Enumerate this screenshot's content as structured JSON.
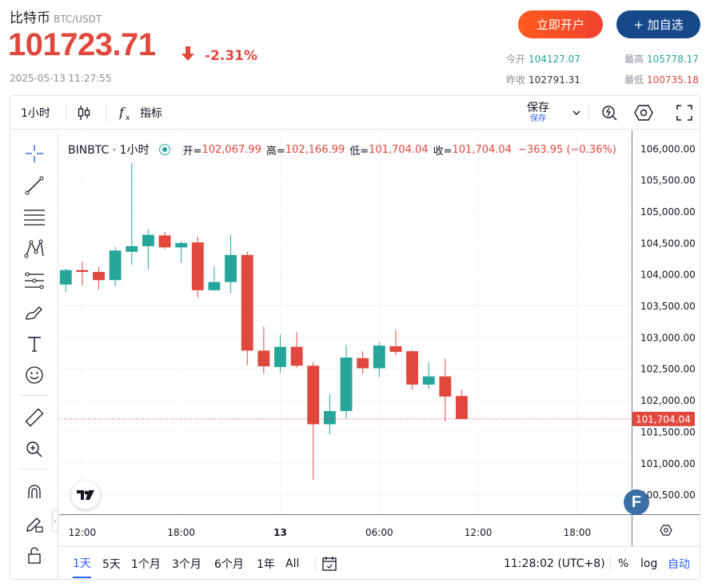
{
  "header": {
    "name": "比特币",
    "pair": "BTC/USDT",
    "price": "101723.71",
    "change": "-2.31%",
    "timestamp": "2025-05-13 11:27:55",
    "open_account_label": "立即开户",
    "add_watchlist_label": "+ 加自选",
    "stats": {
      "today_open_label": "今开",
      "today_open": "104127.07",
      "high_label": "最高",
      "high": "105778.17",
      "prev_close_label": "昨收",
      "prev_close": "102791.31",
      "low_label": "最低",
      "low": "100735.18"
    }
  },
  "toolbar": {
    "interval": "1小时",
    "indicators_label": "指标",
    "save_label": "保存",
    "save_sub_label": "保存"
  },
  "legend": {
    "symbol": "BINBTC · 1小时",
    "open_label": "开=",
    "open": "102,067.99",
    "high_label": "高=",
    "high": "102,166.99",
    "low_label": "低=",
    "low": "101,704.04",
    "close_label": "收=",
    "close": "101,704.04",
    "change": "−363.95 (−0.36%)"
  },
  "bottom_bar": {
    "ranges": [
      "1天",
      "5天",
      "1个月",
      "3个月",
      "6个月",
      "1年",
      "All"
    ],
    "selected_range": "1天",
    "clock": "11:28:02 (UTC+8)",
    "percent_label": "%",
    "log_label": "log",
    "auto_label": "自动"
  },
  "colors": {
    "up": "#26a69a",
    "down": "#e0483d",
    "accent": "#2962ff"
  },
  "chart_data": {
    "type": "candlestick",
    "interval": "1h",
    "x_tick_labels": [
      "12:00",
      "18:00",
      "13",
      "06:00",
      "12:00",
      "18:00"
    ],
    "x_ticks_hours": [
      0,
      6,
      12,
      18,
      24,
      30
    ],
    "x_range_hours": [
      -1.4,
      33.3
    ],
    "y_tick_labels": [
      "106,000.00",
      "105,500.00",
      "105,000.00",
      "104,500.00",
      "104,000.00",
      "103,500.00",
      "103,000.00",
      "102,500.00",
      "102,000.00",
      "101,500.00",
      "101,000.00",
      "100,500.00"
    ],
    "ylim": [
      100190,
      106290
    ],
    "last_price": 101704.04,
    "last_price_label": "101,704.04",
    "candles": [
      {
        "h": -1,
        "o": 103840,
        "hi": 104090,
        "lo": 103720,
        "c": 104070
      },
      {
        "h": 0,
        "o": 104070,
        "hi": 104200,
        "lo": 103830,
        "c": 104040
      },
      {
        "h": 1,
        "o": 104040,
        "hi": 104120,
        "lo": 103760,
        "c": 103910
      },
      {
        "h": 2,
        "o": 103910,
        "hi": 104440,
        "lo": 103810,
        "c": 104380
      },
      {
        "h": 3,
        "o": 104360,
        "hi": 105770,
        "lo": 104150,
        "c": 104450
      },
      {
        "h": 4,
        "o": 104450,
        "hi": 104720,
        "lo": 104080,
        "c": 104630
      },
      {
        "h": 5,
        "o": 104620,
        "hi": 104680,
        "lo": 104400,
        "c": 104430
      },
      {
        "h": 6,
        "o": 104430,
        "hi": 104530,
        "lo": 104190,
        "c": 104500
      },
      {
        "h": 7,
        "o": 104510,
        "hi": 104600,
        "lo": 103630,
        "c": 103750
      },
      {
        "h": 8,
        "o": 103750,
        "hi": 104130,
        "lo": 103740,
        "c": 103880
      },
      {
        "h": 9,
        "o": 103880,
        "hi": 104630,
        "lo": 103700,
        "c": 104310
      },
      {
        "h": 10,
        "o": 104310,
        "hi": 104360,
        "lo": 102560,
        "c": 102790
      },
      {
        "h": 11,
        "o": 102790,
        "hi": 103170,
        "lo": 102420,
        "c": 102540
      },
      {
        "h": 12,
        "o": 102530,
        "hi": 103040,
        "lo": 102440,
        "c": 102850
      },
      {
        "h": 13,
        "o": 102850,
        "hi": 103080,
        "lo": 102520,
        "c": 102550
      },
      {
        "h": 14,
        "o": 102550,
        "hi": 102610,
        "lo": 100740,
        "c": 101620
      },
      {
        "h": 15,
        "o": 101620,
        "hi": 102100,
        "lo": 101460,
        "c": 101830
      },
      {
        "h": 16,
        "o": 101830,
        "hi": 102880,
        "lo": 101720,
        "c": 102680
      },
      {
        "h": 17,
        "o": 102670,
        "hi": 102780,
        "lo": 102420,
        "c": 102510
      },
      {
        "h": 18,
        "o": 102510,
        "hi": 102920,
        "lo": 102370,
        "c": 102870
      },
      {
        "h": 19,
        "o": 102860,
        "hi": 103120,
        "lo": 102720,
        "c": 102770
      },
      {
        "h": 20,
        "o": 102780,
        "hi": 102800,
        "lo": 102170,
        "c": 102250
      },
      {
        "h": 21,
        "o": 102250,
        "hi": 102610,
        "lo": 102180,
        "c": 102380
      },
      {
        "h": 22,
        "o": 102380,
        "hi": 102660,
        "lo": 101660,
        "c": 102060
      },
      {
        "h": 23,
        "o": 102068,
        "hi": 102167,
        "lo": 101704,
        "c": 101704
      }
    ]
  }
}
